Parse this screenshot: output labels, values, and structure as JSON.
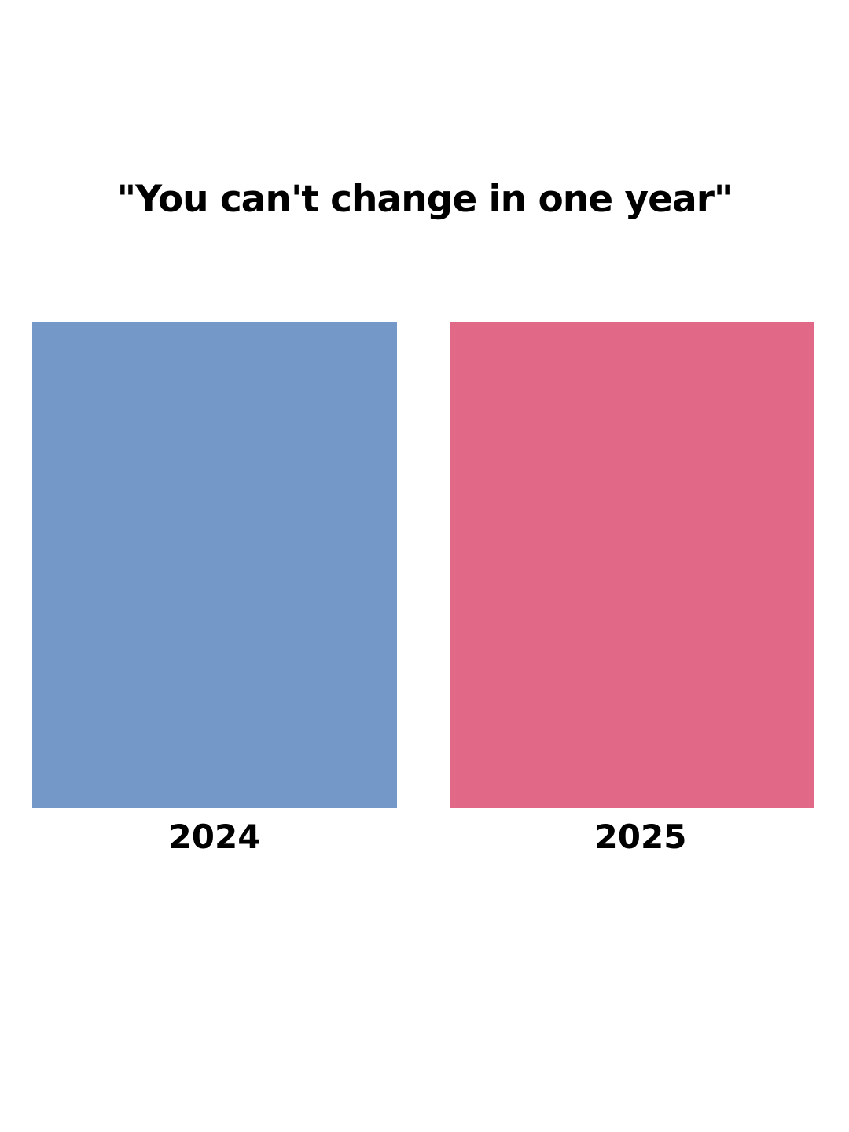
{
  "title": "\"You can't change in one year\"",
  "panels": [
    {
      "label": "2024",
      "color": "#7498c7"
    },
    {
      "label": "2025",
      "color": "#e26888"
    }
  ]
}
